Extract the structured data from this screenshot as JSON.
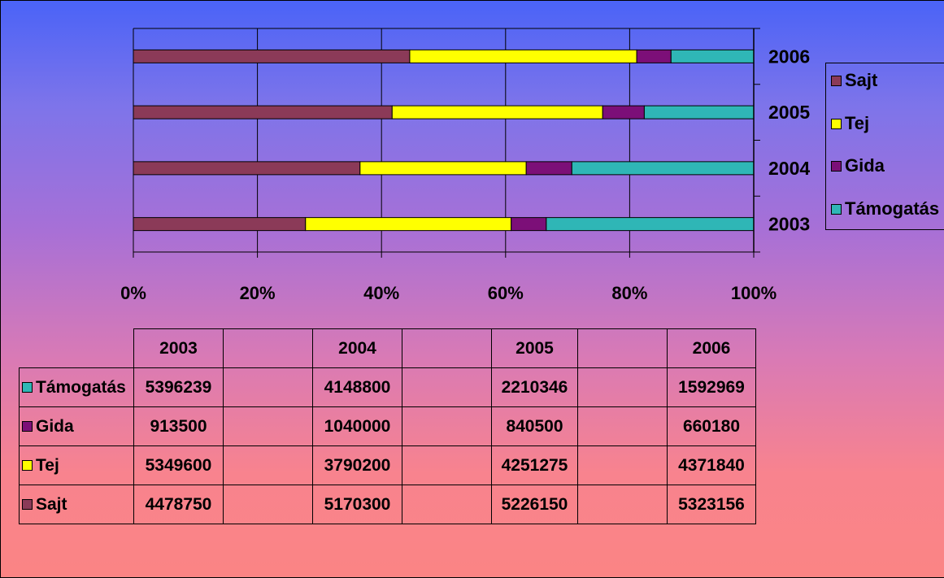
{
  "colors": {
    "Sajt": "#8b3a58",
    "Tej": "#ffff00",
    "Gida": "#7c0f78",
    "Támogatás": "#2fb6b6"
  },
  "chart_data": {
    "type": "bar",
    "orientation": "horizontal",
    "stacking": "percent",
    "categories": [
      "2003",
      "2004",
      "2005",
      "2006"
    ],
    "series": [
      {
        "name": "Sajt",
        "values": [
          4478750,
          5170300,
          5226150,
          5323156
        ]
      },
      {
        "name": "Tej",
        "values": [
          5349600,
          3790200,
          4251275,
          4371840
        ]
      },
      {
        "name": "Gida",
        "values": [
          913500,
          1040000,
          840500,
          660180
        ]
      },
      {
        "name": "Támogatás",
        "values": [
          5396239,
          4148800,
          2210346,
          1592969
        ]
      }
    ],
    "xlim": [
      0,
      100
    ],
    "xticks": [
      "0%",
      "20%",
      "40%",
      "60%",
      "80%",
      "100%"
    ],
    "grid": true,
    "legend": "right",
    "legend_order": [
      "Sajt",
      "Tej",
      "Gida",
      "Támogatás"
    ]
  },
  "table": {
    "columns": [
      "2003",
      "",
      "2004",
      "",
      "2005",
      "",
      "2006"
    ],
    "rows": [
      {
        "label": "Támogatás",
        "cells": [
          "5396239",
          "",
          "4148800",
          "",
          "2210346",
          "",
          "1592969"
        ]
      },
      {
        "label": "Gida",
        "cells": [
          "913500",
          "",
          "1040000",
          "",
          "840500",
          "",
          "660180"
        ]
      },
      {
        "label": "Tej",
        "cells": [
          "5349600",
          "",
          "3790200",
          "",
          "4251275",
          "",
          "4371840"
        ]
      },
      {
        "label": "Sajt",
        "cells": [
          "4478750",
          "",
          "5170300",
          "",
          "5226150",
          "",
          "5323156"
        ]
      }
    ]
  }
}
